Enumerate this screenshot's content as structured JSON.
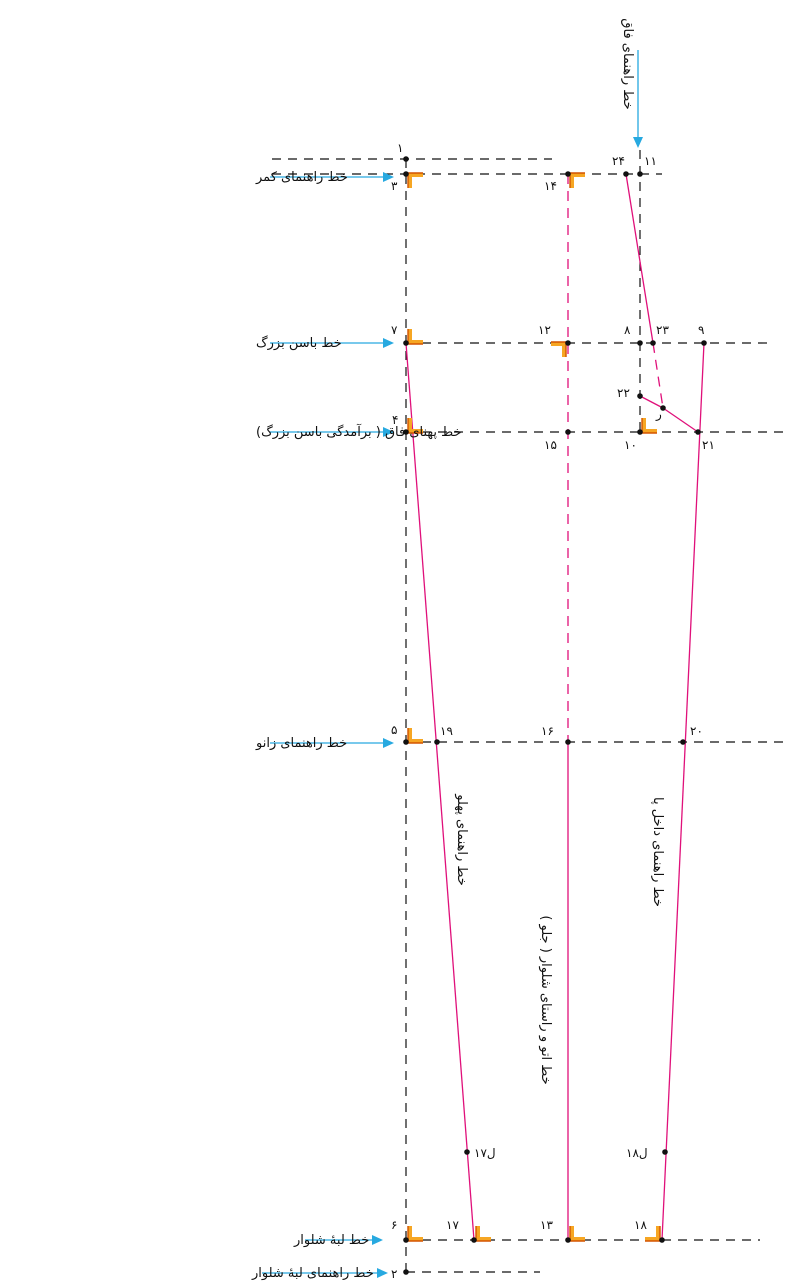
{
  "guide_labels": {
    "waist": "خط راهنمای کمر",
    "big_hip": "خط باسن بزرگ",
    "crotch_width": "خط پهنای فاق ( برآمدگی باسن بزرگ)",
    "knee": "خط راهنمای زانو",
    "hem": "خط لبهٔ شلوار",
    "hem_guide": "خط راهنمای لبهٔ شلوار"
  },
  "vertical_labels": {
    "crotch_guide": "خط راهنمای فاق",
    "side_guide": "خط راهنمای پهلو",
    "crease_line": "خط اتو و راستای شلوار ( جلو )",
    "inner_leg_guide": "خط راهنمای داخل پا"
  },
  "points": {
    "p1": "۱",
    "p2": "۲",
    "p3": "۳",
    "p4": "۴",
    "p5": "۵",
    "p6": "۶",
    "p7": "۷",
    "p8": "۸",
    "p9": "۹",
    "p10": "۱۰",
    "p11": "۱۱",
    "p12": "۱۲",
    "p13": "۱۳",
    "p14": "۱۴",
    "p15": "۱۵",
    "p16": "۱۶",
    "p17": "۱۷",
    "p17l": "ل۱۷",
    "p18": "۱۸",
    "p18l": "ل۱۸",
    "p19": "۱۹",
    "p20": "۲۰",
    "p21": "۲۱",
    "p22": "۲۲",
    "p23": "۲۳",
    "p24": "۲۴",
    "p_rah": "ر"
  },
  "colors": {
    "guide_line": "#111111",
    "pattern_line": "#e0107a",
    "arrow": "#27a9e0",
    "corner_mark": "#f6a623"
  }
}
